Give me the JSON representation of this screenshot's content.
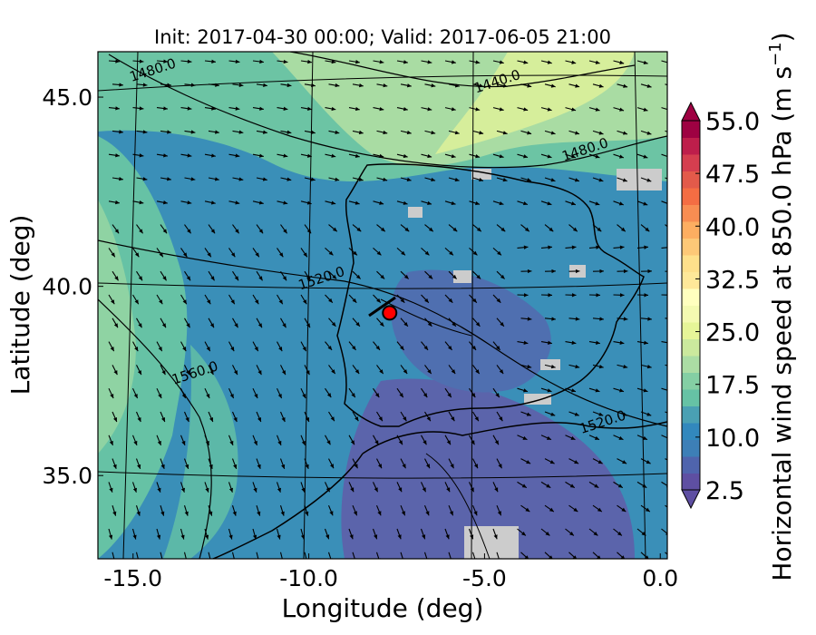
{
  "chart_data": {
    "type": "heatmap",
    "title": "Init: 2017-04-30 00:00; Valid: 2017-06-05 21:00",
    "xlabel": "Longitude (deg)",
    "ylabel": "Latitude (deg)",
    "x_ticks": [
      "-15.0",
      "-10.0",
      "-5.0",
      "0.0"
    ],
    "y_ticks": [
      "45.0",
      "40.0",
      "35.0"
    ],
    "xlim": [
      -16,
      0.2
    ],
    "ylim": [
      32.8,
      46.2
    ],
    "colorbar": {
      "label": "Horizontal wind speed at 850.0 hPa (m s",
      "label_exponent": "−1",
      "label_close": ")",
      "range": [
        2.5,
        55.0
      ],
      "step": 2.5,
      "tick_labels": [
        "55.0",
        "47.5",
        "40.0",
        "32.5",
        "25.0",
        "17.5",
        "10.0",
        "2.5"
      ],
      "extend": "both",
      "colormap": "Spectral_r"
    },
    "contour_labels": [
      {
        "text": "1480.0",
        "lon": -14.4,
        "lat": 45.6
      },
      {
        "text": "1440.0",
        "lon": -4.6,
        "lat": 45.3
      },
      {
        "text": "1480.0",
        "lon": -2.1,
        "lat": 43.5
      },
      {
        "text": "1520.0",
        "lon": -9.6,
        "lat": 40.1
      },
      {
        "text": "1560.0",
        "lon": -13.2,
        "lat": 37.6
      },
      {
        "text": "1520.0",
        "lon": -1.6,
        "lat": 36.3
      }
    ],
    "marker": {
      "lon": -7.7,
      "lat": 39.3,
      "color": "#ff0000"
    },
    "grid": true
  }
}
